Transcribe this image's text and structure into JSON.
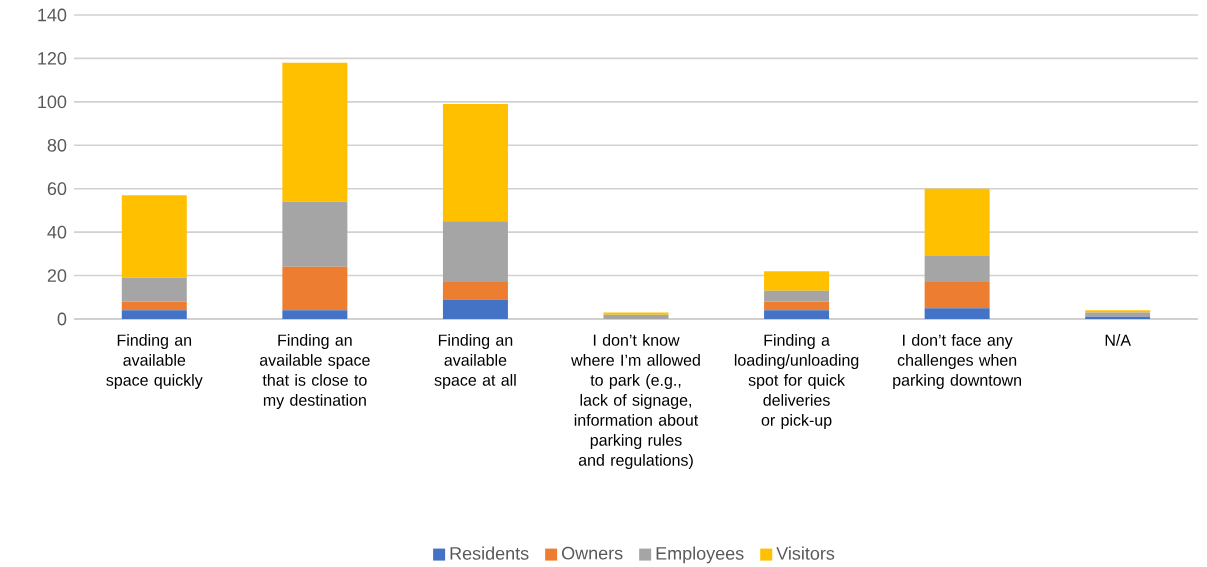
{
  "chart_data": {
    "type": "bar",
    "stacked": true,
    "categories": [
      "Finding an available space quickly",
      "Finding an available space that is close to my destination",
      "Finding an available space at all",
      "I don’t know where I’m allowed to park (e.g., lack of signage, information about parking rules and regulations)",
      "Finding a loading/unloading spot for quick deliveries or pick-up",
      "I don’t face any challenges when parking downtown",
      "N/A"
    ],
    "series": [
      {
        "name": "Residents",
        "color": "#4472c4",
        "values": [
          4,
          4,
          9,
          0,
          4,
          5,
          1
        ]
      },
      {
        "name": "Owners",
        "color": "#ed7d31",
        "values": [
          4,
          20,
          8,
          0,
          4,
          12,
          0
        ]
      },
      {
        "name": "Employees",
        "color": "#a5a5a5",
        "values": [
          11,
          30,
          28,
          2,
          5,
          12,
          2
        ]
      },
      {
        "name": "Visitors",
        "color": "#ffc000",
        "values": [
          38,
          64,
          54,
          1,
          9,
          31,
          1
        ]
      }
    ],
    "ylim": [
      0,
      140
    ],
    "yticks": [
      0,
      20,
      40,
      60,
      80,
      100,
      120,
      140
    ],
    "grid": "y",
    "legend": "bottom"
  }
}
